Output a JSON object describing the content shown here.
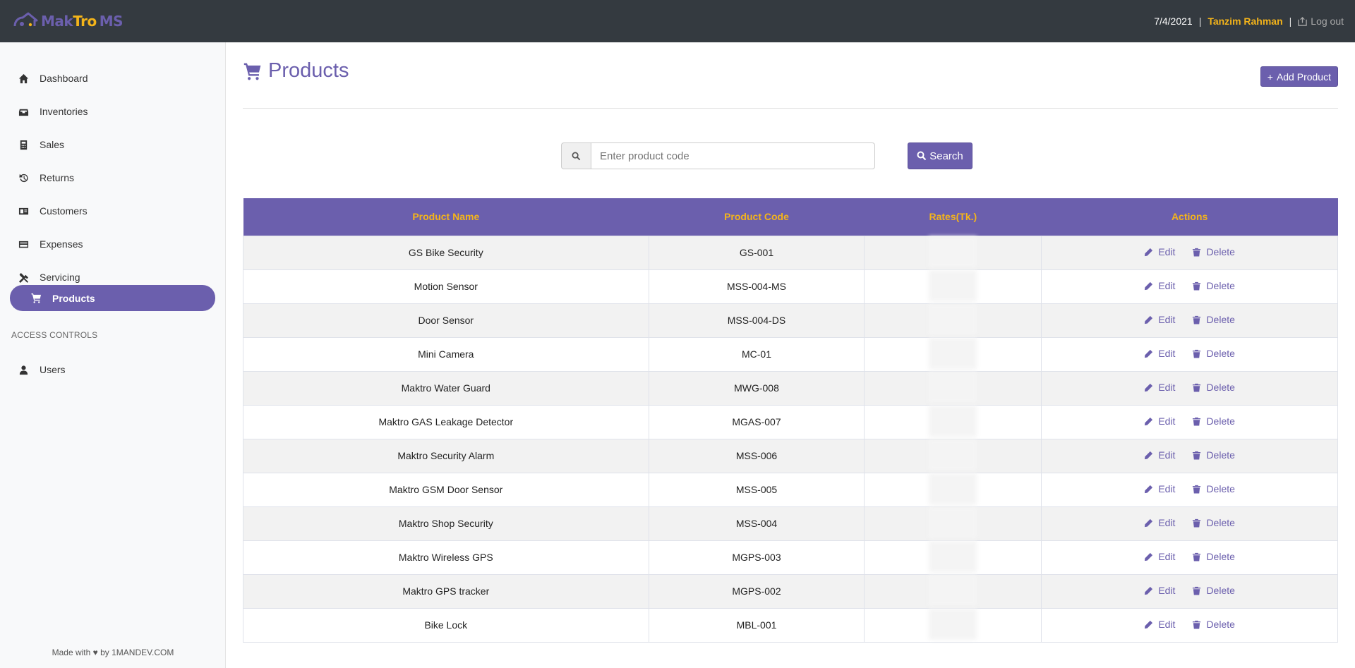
{
  "brand": {
    "part1": "Mak",
    "part2": "Tro",
    "part3": "MS"
  },
  "topbar": {
    "date": "7/4/2021",
    "user": "Tanzim Rahman",
    "logout": "Log out"
  },
  "sidebar": {
    "items": [
      {
        "label": "Dashboard",
        "icon": "home-icon"
      },
      {
        "label": "Inventories",
        "icon": "inbox-icon"
      },
      {
        "label": "Sales",
        "icon": "calculator-icon"
      },
      {
        "label": "Returns",
        "icon": "history-icon"
      },
      {
        "label": "Customers",
        "icon": "id-card-icon"
      },
      {
        "label": "Expenses",
        "icon": "credit-card-icon"
      },
      {
        "label": "Servicing",
        "icon": "tools-icon"
      },
      {
        "label": "Products",
        "icon": "cart-icon",
        "active": true
      }
    ],
    "section": "ACCESS CONTROLS",
    "users": "Users",
    "footer": "Made with ♥ by 1MANDEV.COM"
  },
  "page": {
    "title": "Products",
    "add_button": "Add Product"
  },
  "search": {
    "placeholder": "Enter product code",
    "button": "Search"
  },
  "table": {
    "headers": [
      "Product Name",
      "Product Code",
      "Rates(Tk.)",
      "Actions"
    ],
    "rows": [
      {
        "name": "GS Bike Security",
        "code": "GS-001"
      },
      {
        "name": "Motion Sensor",
        "code": "MSS-004-MS"
      },
      {
        "name": "Door Sensor",
        "code": "MSS-004-DS"
      },
      {
        "name": "Mini Camera",
        "code": "MC-01"
      },
      {
        "name": "Maktro Water Guard",
        "code": "MWG-008"
      },
      {
        "name": "Maktro GAS Leakage Detector",
        "code": "MGAS-007"
      },
      {
        "name": "Maktro Security Alarm",
        "code": "MSS-006"
      },
      {
        "name": "Maktro GSM Door Sensor",
        "code": "MSS-005"
      },
      {
        "name": "Maktro Shop Security",
        "code": "MSS-004"
      },
      {
        "name": "Maktro Wireless GPS",
        "code": "MGPS-003"
      },
      {
        "name": "Maktro GPS tracker",
        "code": "MGPS-002"
      },
      {
        "name": "Bike Lock",
        "code": "MBL-001"
      }
    ],
    "edit_label": "Edit",
    "delete_label": "Delete"
  },
  "colors": {
    "accent": "#6b5fad",
    "highlight": "#f4b41a",
    "topbar": "#343a40"
  }
}
